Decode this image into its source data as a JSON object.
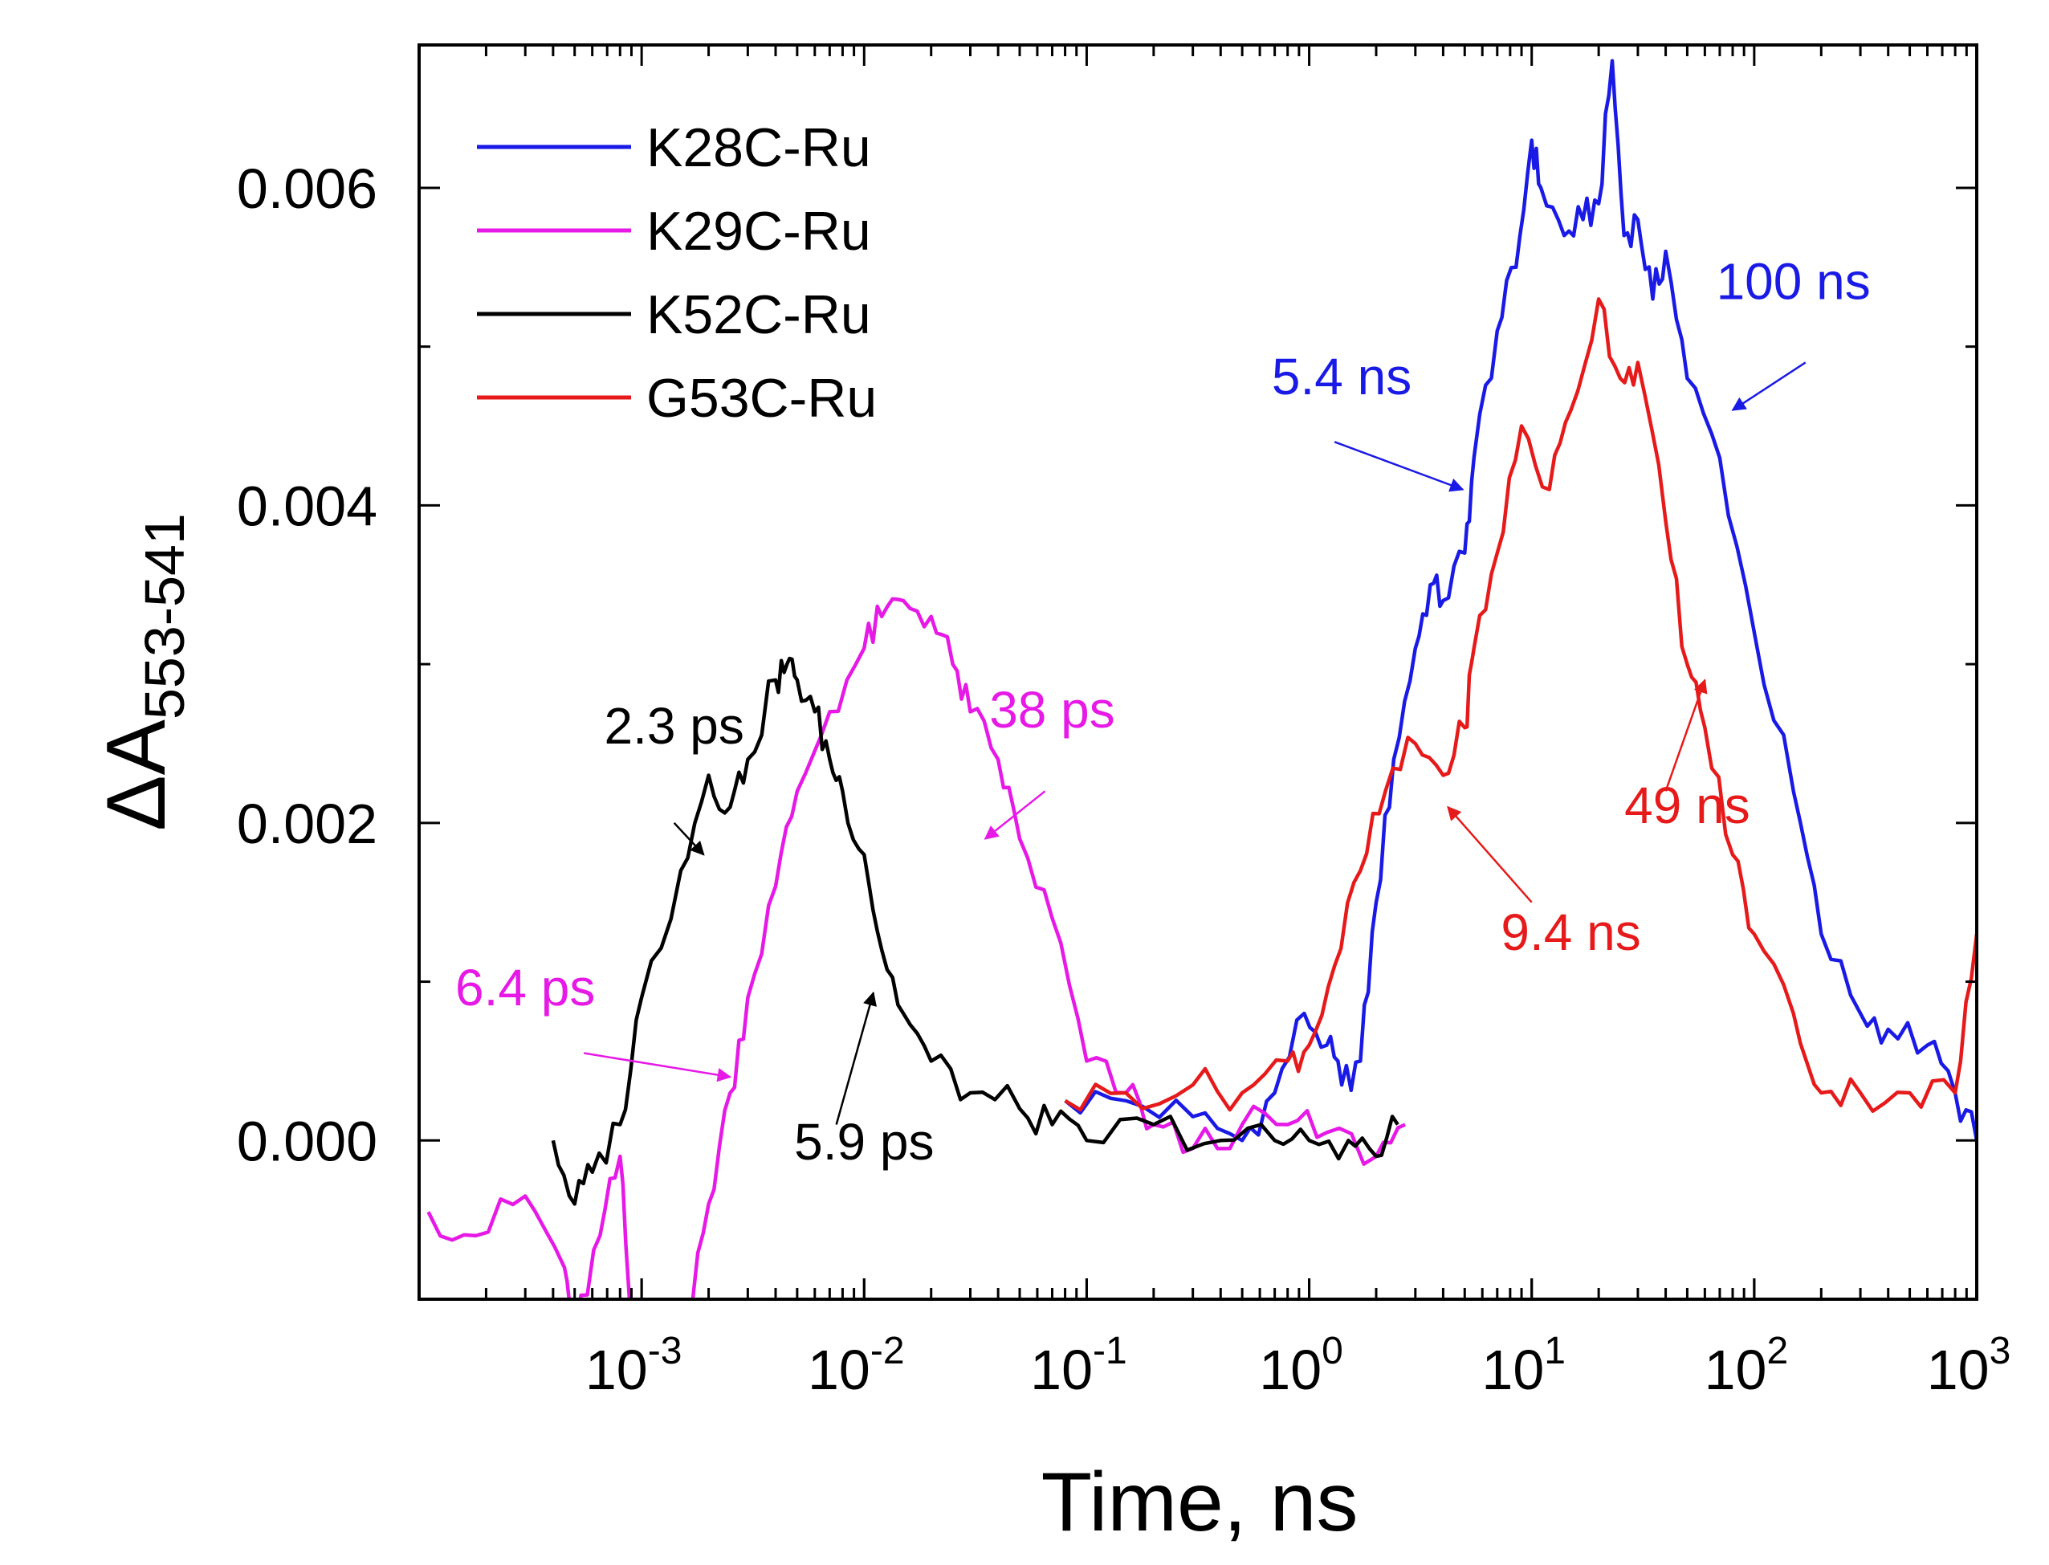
{
  "chart_data": {
    "type": "line",
    "title": "",
    "xlabel": "Time, ns",
    "ylabel": {
      "main": "ΔA",
      "subscript": "553-541"
    },
    "xscale": "log",
    "xlim": [
      0.0001,
      1000
    ],
    "ylim": [
      -0.001,
      0.0069
    ],
    "legend_position": "top-left",
    "x_ticks": [
      {
        "value": 0.001,
        "base": "10",
        "exp": "-3"
      },
      {
        "value": 0.01,
        "base": "10",
        "exp": "-2"
      },
      {
        "value": 0.1,
        "base": "10",
        "exp": "-1"
      },
      {
        "value": 1,
        "base": "10",
        "exp": "0"
      },
      {
        "value": 10,
        "base": "10",
        "exp": "1"
      },
      {
        "value": 100,
        "base": "10",
        "exp": "2"
      },
      {
        "value": 1000,
        "base": "10",
        "exp": "3"
      }
    ],
    "y_ticks": [
      {
        "value": 0.0,
        "label": "0.000"
      },
      {
        "value": 0.002,
        "label": "0.002"
      },
      {
        "value": 0.004,
        "label": "0.004"
      },
      {
        "value": 0.006,
        "label": "0.006"
      }
    ],
    "series": [
      {
        "name": "K28C-Ru",
        "color": "#1a1ae6",
        "points": [
          [
            0.08,
            0.00025
          ],
          [
            0.15,
            0.00025
          ],
          [
            0.3,
            0.00015
          ],
          [
            0.5,
            0.0
          ],
          [
            0.7,
            0.0003
          ],
          [
            0.95,
            0.0008
          ],
          [
            1.2,
            0.0006
          ],
          [
            1.4,
            0.00035
          ],
          [
            1.7,
            0.0005
          ],
          [
            2.0,
            0.0015
          ],
          [
            2.4,
            0.0024
          ],
          [
            3.0,
            0.0031
          ],
          [
            3.5,
            0.0035
          ],
          [
            4.0,
            0.0034
          ],
          [
            5.0,
            0.0037
          ],
          [
            5.5,
            0.0043
          ],
          [
            7.0,
            0.0051
          ],
          [
            8.5,
            0.0055
          ],
          [
            10.0,
            0.0063
          ],
          [
            11.0,
            0.006
          ],
          [
            14.0,
            0.0057
          ],
          [
            17.0,
            0.0058
          ],
          [
            20.0,
            0.0059
          ],
          [
            23.0,
            0.0068
          ],
          [
            26.0,
            0.0057
          ],
          [
            30.0,
            0.0058
          ],
          [
            35.0,
            0.0053
          ],
          [
            40.0,
            0.0056
          ],
          [
            50.0,
            0.0048
          ],
          [
            70.0,
            0.0043
          ],
          [
            100.0,
            0.0032
          ],
          [
            150.0,
            0.0022
          ],
          [
            200.0,
            0.0013
          ],
          [
            300.0,
            0.0008
          ],
          [
            400.0,
            0.0007
          ],
          [
            600.0,
            0.0006
          ],
          [
            800.0,
            0.0003
          ],
          [
            1000.0,
            0.0
          ]
        ]
      },
      {
        "name": "K29C-Ru",
        "color": "#e619e6",
        "points": [
          [
            0.00011,
            -0.00045
          ],
          [
            0.00018,
            -0.0006
          ],
          [
            0.0003,
            -0.00035
          ],
          [
            0.00045,
            -0.0008
          ],
          [
            0.0005,
            -0.0012
          ],
          [
            0.00065,
            -0.0006
          ],
          [
            0.0008,
            -0.0001
          ],
          [
            0.0009,
            -0.0012
          ],
          [
            0.0016,
            -0.0012
          ],
          [
            0.002,
            -0.0004
          ],
          [
            0.0025,
            0.0003
          ],
          [
            0.003,
            0.0009
          ],
          [
            0.004,
            0.0016
          ],
          [
            0.005,
            0.0022
          ],
          [
            0.007,
            0.0027
          ],
          [
            0.01,
            0.0031
          ],
          [
            0.012,
            0.0033
          ],
          [
            0.015,
            0.0034
          ],
          [
            0.02,
            0.0033
          ],
          [
            0.025,
            0.003
          ],
          [
            0.03,
            0.0027
          ],
          [
            0.04,
            0.0024
          ],
          [
            0.05,
            0.0019
          ],
          [
            0.07,
            0.0014
          ],
          [
            0.1,
            0.0005
          ],
          [
            0.15,
            0.0003
          ],
          [
            0.2,
            0.0001
          ],
          [
            0.3,
            -5e-05
          ],
          [
            0.5,
            0.0001
          ],
          [
            0.8,
            0.0001
          ],
          [
            1.2,
            5e-05
          ],
          [
            2.0,
            -0.0001
          ],
          [
            2.7,
            0.0001
          ]
        ]
      },
      {
        "name": "K52C-Ru",
        "color": "#000000",
        "points": [
          [
            0.0004,
            0.0
          ],
          [
            0.0005,
            -0.0004
          ],
          [
            0.0006,
            -0.0002
          ],
          [
            0.0008,
            0.0001
          ],
          [
            0.001,
            0.0009
          ],
          [
            0.0015,
            0.0017
          ],
          [
            0.002,
            0.0023
          ],
          [
            0.0025,
            0.0021
          ],
          [
            0.003,
            0.0024
          ],
          [
            0.004,
            0.0029
          ],
          [
            0.0045,
            0.003
          ],
          [
            0.005,
            0.0029
          ],
          [
            0.006,
            0.0027
          ],
          [
            0.007,
            0.0024
          ],
          [
            0.008,
            0.0022
          ],
          [
            0.01,
            0.0018
          ],
          [
            0.012,
            0.0012
          ],
          [
            0.015,
            0.0008
          ],
          [
            0.02,
            0.0005
          ],
          [
            0.03,
            0.0003
          ],
          [
            0.05,
            0.0002
          ],
          [
            0.07,
            0.0001
          ],
          [
            0.1,
            0.0
          ],
          [
            0.2,
            0.0001
          ],
          [
            0.4,
            0.0
          ],
          [
            0.7,
            0.0
          ],
          [
            1.0,
            0.0
          ],
          [
            1.5,
            0.0
          ],
          [
            2.0,
            -0.0001
          ],
          [
            2.5,
            0.0001
          ]
        ]
      },
      {
        "name": "G53C-Ru",
        "color": "#e61a1a",
        "points": [
          [
            0.08,
            0.00025
          ],
          [
            0.15,
            0.0003
          ],
          [
            0.3,
            0.00035
          ],
          [
            0.5,
            0.0003
          ],
          [
            0.8,
            0.0005
          ],
          [
            1.0,
            0.0006
          ],
          [
            1.3,
            0.0011
          ],
          [
            1.7,
            0.0017
          ],
          [
            2.2,
            0.0022
          ],
          [
            3.0,
            0.0025
          ],
          [
            4.0,
            0.0023
          ],
          [
            5.0,
            0.0026
          ],
          [
            5.5,
            0.0031
          ],
          [
            7.0,
            0.0037
          ],
          [
            9.0,
            0.0045
          ],
          [
            12.0,
            0.0041
          ],
          [
            15.0,
            0.0046
          ],
          [
            20.0,
            0.0053
          ],
          [
            25.0,
            0.0048
          ],
          [
            30.0,
            0.0049
          ],
          [
            40.0,
            0.0039
          ],
          [
            50.0,
            0.003
          ],
          [
            60.0,
            0.0026
          ],
          [
            80.0,
            0.0018
          ],
          [
            100.0,
            0.0013
          ],
          [
            150.0,
            0.0008
          ],
          [
            200.0,
            0.0003
          ],
          [
            300.0,
            0.0003
          ],
          [
            500.0,
            0.0003
          ],
          [
            800.0,
            0.0003
          ],
          [
            1000.0,
            0.0013
          ]
        ]
      }
    ],
    "annotations": [
      {
        "text": "2.3 ps",
        "color": "#000000",
        "x": 0.0014,
        "y": 0.0025,
        "arrow_from": [
          0.0014,
          0.002
        ],
        "arrow_to": [
          0.0019,
          0.0018
        ]
      },
      {
        "text": "6.4 ps",
        "color": "#e619e6",
        "x": 0.0003,
        "y": 0.00085,
        "arrow_from": [
          0.00055,
          0.00055
        ],
        "arrow_to": [
          0.0025,
          0.0004
        ]
      },
      {
        "text": "5.9 ps",
        "color": "#000000",
        "x": 0.01,
        "y": -0.00012,
        "arrow_from": [
          0.0075,
          0.0001
        ],
        "arrow_to": [
          0.011,
          0.00093
        ]
      },
      {
        "text": "38 ps",
        "color": "#e619e6",
        "x": 0.07,
        "y": 0.0026,
        "arrow_from": [
          0.065,
          0.0022
        ],
        "arrow_to": [
          0.035,
          0.0019
        ]
      },
      {
        "text": "5.4 ns",
        "color": "#1a1ae6",
        "x": 1.4,
        "y": 0.0047,
        "arrow_from": [
          1.3,
          0.0044
        ],
        "arrow_to": [
          4.9,
          0.0041
        ]
      },
      {
        "text": "100 ns",
        "color": "#1a1ae6",
        "x": 150,
        "y": 0.0053,
        "arrow_from": [
          170,
          0.0049
        ],
        "arrow_to": [
          80,
          0.0046
        ]
      },
      {
        "text": "9.4 ns",
        "color": "#e61a1a",
        "x": 15,
        "y": 0.0012,
        "arrow_from": [
          10,
          0.0015
        ],
        "arrow_to": [
          4.2,
          0.0021
        ]
      },
      {
        "text": "49 ns",
        "color": "#e61a1a",
        "x": 50,
        "y": 0.002,
        "arrow_from": [
          40,
          0.0022
        ],
        "arrow_to": [
          60,
          0.0029
        ]
      }
    ]
  }
}
